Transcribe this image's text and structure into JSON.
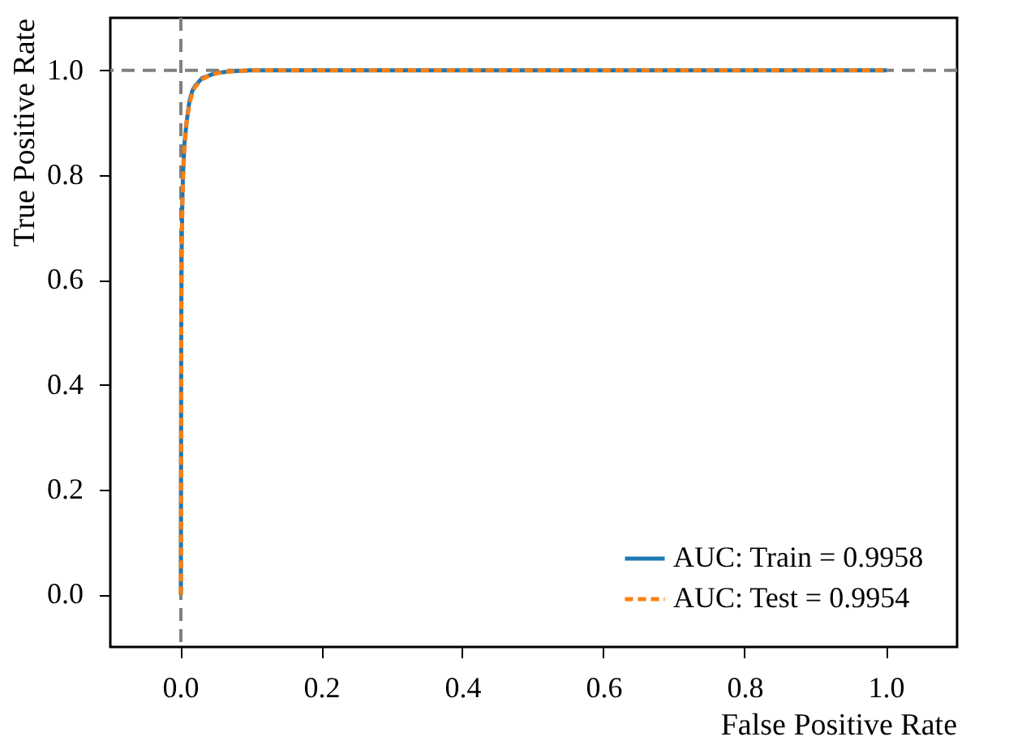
{
  "chart_data": {
    "type": "line",
    "xlabel": "False Positive Rate",
    "ylabel": "True Positive Rate",
    "xlim": [
      -0.1,
      1.1
    ],
    "ylim": [
      -0.1,
      1.1
    ],
    "xticks": [
      {
        "value": 0,
        "label": "0.0"
      },
      0.2,
      0.4,
      0.6,
      0.8,
      {
        "value": 1,
        "label": "1.0"
      }
    ],
    "yticks": [
      {
        "value": 0,
        "label": "0.0"
      },
      0.2,
      0.4,
      0.6,
      0.8,
      {
        "value": 1,
        "label": "1.0"
      }
    ],
    "grid": false,
    "legend": "bottom right",
    "series": [
      {
        "name": "AUC: Train = 0.9958",
        "color": "#1f77b4",
        "line_style": "solid",
        "x": [
          0,
          0.0005,
          0.001,
          0.002,
          0.003,
          0.005,
          0.008,
          0.012,
          0.016,
          0.02,
          0.03,
          0.04,
          0.05,
          0.07,
          0.1,
          0.2,
          0.4,
          0.6,
          0.8,
          1.0
        ],
        "values": [
          0,
          0.5,
          0.65,
          0.75,
          0.8,
          0.86,
          0.9,
          0.94,
          0.96,
          0.97,
          0.985,
          0.99,
          0.995,
          0.998,
          1,
          1,
          1,
          1,
          1,
          1
        ]
      },
      {
        "name": "AUC: Test = 0.9954",
        "color": "#ff7f0e",
        "line_style": "dashed",
        "x": [
          0,
          0.0005,
          0.001,
          0.002,
          0.003,
          0.005,
          0.008,
          0.012,
          0.016,
          0.02,
          0.03,
          0.04,
          0.05,
          0.07,
          0.1,
          0.2,
          0.4,
          0.6,
          0.8,
          1.0
        ],
        "values": [
          0,
          0.48,
          0.63,
          0.74,
          0.79,
          0.85,
          0.9,
          0.935,
          0.955,
          0.968,
          0.983,
          0.99,
          0.994,
          0.998,
          1,
          1,
          1,
          1,
          1,
          1
        ]
      }
    ],
    "ref_lines": [
      {
        "axis": "x",
        "value": 0,
        "color": "#808080",
        "line_style": "dashed"
      },
      {
        "axis": "y",
        "value": 1,
        "color": "#808080",
        "line_style": "dashed"
      }
    ]
  }
}
